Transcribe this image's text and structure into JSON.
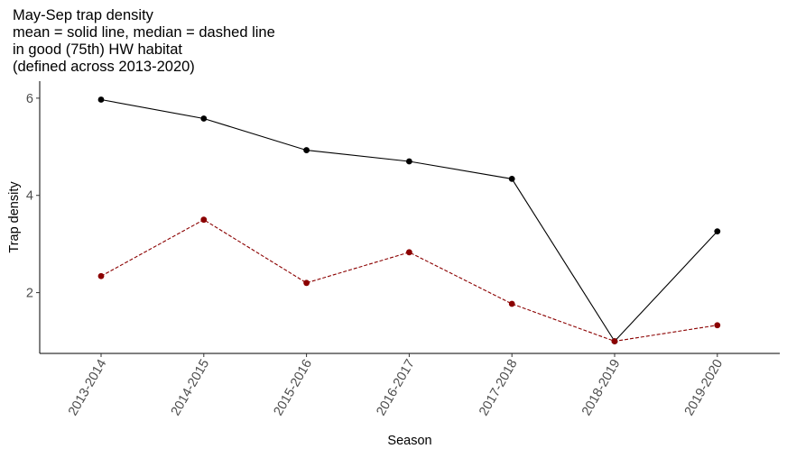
{
  "chart_data": {
    "type": "line",
    "title_lines": [
      "May-Sep trap density",
      "mean = solid line, median = dashed line",
      "in good (75th) HW habitat",
      "(defined across 2013-2020)"
    ],
    "xlabel": "Season",
    "ylabel": "Trap density",
    "categories": [
      "2013-2014",
      "2014-2015",
      "2015-2016",
      "2016-2017",
      "2017-2018",
      "2018-2019",
      "2019-2020"
    ],
    "yticks": [
      2,
      4,
      6
    ],
    "ylim": [
      0.75,
      6.35
    ],
    "grid": false,
    "legend": "none",
    "series": [
      {
        "values": [
          5.97,
          5.58,
          4.93,
          4.7,
          4.34,
          1.0,
          3.26
        ],
        "color": "#000000",
        "line_style": "solid"
      },
      {
        "values": [
          2.34,
          3.5,
          2.2,
          2.83,
          1.77,
          1.0,
          1.33
        ],
        "color": "#8b0000",
        "line_style": "dashed"
      }
    ]
  }
}
